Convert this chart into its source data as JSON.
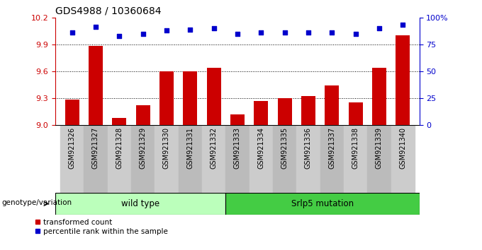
{
  "title": "GDS4988 / 10360684",
  "samples": [
    "GSM921326",
    "GSM921327",
    "GSM921328",
    "GSM921329",
    "GSM921330",
    "GSM921331",
    "GSM921332",
    "GSM921333",
    "GSM921334",
    "GSM921335",
    "GSM921336",
    "GSM921337",
    "GSM921338",
    "GSM921339",
    "GSM921340"
  ],
  "bar_values": [
    9.28,
    9.88,
    9.08,
    9.22,
    9.6,
    9.6,
    9.64,
    9.12,
    9.27,
    9.3,
    9.32,
    9.44,
    9.25,
    9.64,
    10.0
  ],
  "percentile_values": [
    86,
    91,
    83,
    85,
    88,
    89,
    90,
    85,
    86,
    86,
    86,
    86,
    85,
    90,
    93
  ],
  "bar_color": "#cc0000",
  "percentile_color": "#0000cc",
  "ylim_left": [
    9.0,
    10.2
  ],
  "ylim_right": [
    0,
    100
  ],
  "yticks_left": [
    9.0,
    9.3,
    9.6,
    9.9,
    10.2
  ],
  "yticks_right": [
    0,
    25,
    50,
    75,
    100
  ],
  "ytick_labels_right": [
    "0",
    "25",
    "50",
    "75",
    "100%"
  ],
  "group1_label": "wild type",
  "group2_label": "Srlp5 mutation",
  "group1_count": 7,
  "group1_color": "#bbffbb",
  "group2_color": "#44cc44",
  "legend1": "transformed count",
  "legend2": "percentile rank within the sample",
  "genotype_label": "genotype/variation",
  "bar_color_left": "#cc0000",
  "pct_color_right": "#0000cc",
  "bg_color": "#ffffff",
  "tick_area_color1": "#cccccc",
  "tick_area_color2": "#bbbbbb"
}
